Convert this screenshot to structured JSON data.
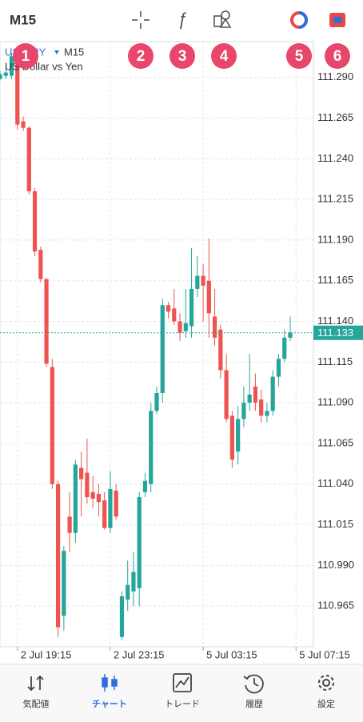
{
  "toolbar": {
    "timeframe": "M15"
  },
  "annotations": [
    "1",
    "2",
    "3",
    "4",
    "5",
    "6"
  ],
  "chart_data": {
    "type": "candlestick",
    "symbol": "USDJPY",
    "timeframe": "M15",
    "description": "US Dollar vs Yen",
    "open": [
      111.289,
      111.291,
      111.291,
      111.303,
      111.263,
      111.259,
      111.22,
      111.184,
      111.166,
      111.112,
      111.04,
      110.959,
      111.02,
      111.01,
      111.05,
      111.047,
      111.035,
      111.034,
      111.03,
      111.013,
      111.036,
      110.946,
      110.969,
      110.974,
      110.976,
      111.035,
      111.04,
      111.085,
      111.096,
      111.15,
      111.148,
      111.14,
      111.134,
      111.137,
      111.16,
      111.168,
      111.165,
      111.143,
      111.135,
      111.11,
      111.082,
      111.06,
      111.08,
      111.09,
      111.1,
      111.092,
      111.082,
      111.085,
      111.106,
      111.117,
      111.13
    ],
    "high": [
      111.294,
      111.296,
      111.305,
      111.309,
      111.266,
      111.26,
      111.222,
      111.186,
      111.167,
      111.117,
      111.042,
      111.002,
      111.035,
      111.055,
      111.06,
      111.068,
      111.045,
      111.04,
      111.035,
      111.048,
      111.04,
      110.974,
      110.993,
      110.998,
      111.035,
      111.047,
      111.09,
      111.1,
      111.154,
      111.152,
      111.16,
      111.145,
      111.16,
      111.185,
      111.18,
      111.175,
      111.191,
      111.16,
      111.138,
      111.12,
      111.085,
      111.088,
      111.1,
      111.12,
      111.108,
      111.098,
      111.09,
      111.11,
      111.12,
      111.135,
      111.143
    ],
    "low": [
      111.288,
      111.289,
      111.289,
      111.258,
      111.257,
      111.218,
      111.18,
      111.164,
      111.112,
      111.037,
      110.946,
      110.95,
      110.998,
      111.004,
      111.02,
      111.028,
      111.025,
      111.02,
      111.012,
      111.01,
      111.018,
      110.944,
      110.962,
      110.965,
      110.965,
      111.032,
      111.035,
      111.083,
      111.09,
      111.142,
      111.138,
      111.128,
      111.13,
      111.13,
      111.155,
      111.14,
      111.13,
      111.125,
      111.105,
      111.078,
      111.05,
      111.052,
      111.075,
      111.085,
      111.085,
      111.078,
      111.078,
      111.082,
      111.1,
      111.115,
      111.128
    ],
    "close": [
      111.292,
      111.293,
      111.303,
      111.261,
      111.259,
      111.22,
      111.183,
      111.166,
      111.114,
      111.04,
      110.952,
      110.999,
      111.01,
      111.052,
      111.043,
      111.032,
      111.031,
      111.029,
      111.013,
      111.037,
      111.02,
      110.971,
      110.978,
      110.986,
      111.032,
      111.042,
      111.085,
      111.096,
      111.15,
      111.146,
      111.14,
      111.133,
      111.139,
      111.16,
      111.168,
      111.162,
      111.145,
      111.13,
      111.11,
      111.08,
      111.055,
      111.08,
      111.09,
      111.095,
      111.09,
      111.082,
      111.085,
      111.106,
      111.117,
      111.13,
      111.133
    ],
    "up_color": "#26a69a",
    "down_color": "#ef5350",
    "last_price": 111.133,
    "ylim": [
      110.94,
      111.312
    ],
    "yticks": [
      {
        "value": 111.29,
        "label": "111.290"
      },
      111.265,
      {
        "value": 111.24,
        "label": "111.240"
      },
      111.215,
      {
        "value": 111.19,
        "label": "111.190"
      },
      111.165,
      {
        "value": 111.14,
        "label": "111.140"
      },
      111.115,
      {
        "value": 111.09,
        "label": "111.090"
      },
      111.065,
      {
        "value": 111.04,
        "label": "111.040"
      },
      111.015,
      {
        "value": 110.99,
        "label": "110.990"
      },
      110.965
    ],
    "xlim": [
      0,
      54
    ],
    "xticks": [
      {
        "value": 3,
        "label": "2 Jul 19:15"
      },
      {
        "value": 19,
        "label": "2 Jul 23:15"
      },
      {
        "value": 35,
        "label": "5 Jul 03:15"
      },
      {
        "value": 51,
        "label": "5 Jul 07:15"
      }
    ],
    "grid": true
  },
  "nav": [
    "気配値",
    "チャート",
    "トレード",
    "履歴",
    "設定"
  ],
  "nav_active": 1
}
